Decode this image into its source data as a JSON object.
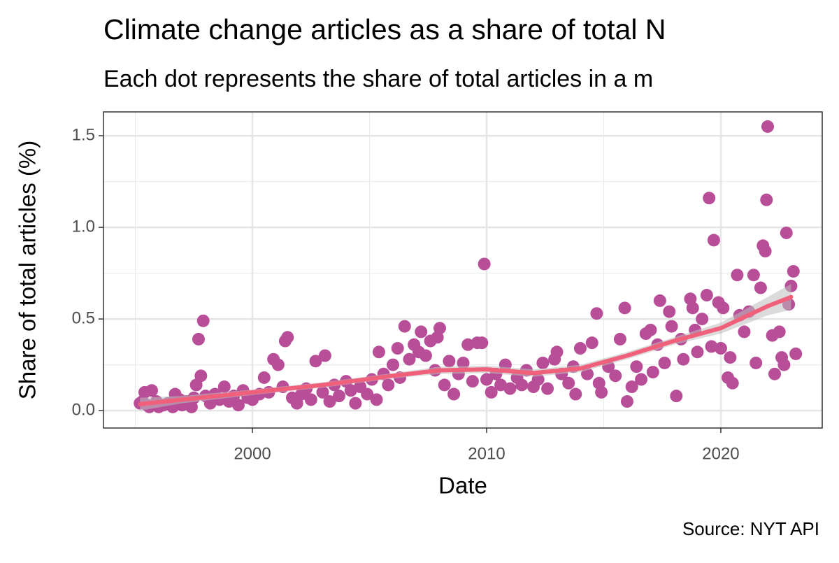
{
  "chart_data": {
    "type": "scatter",
    "title": "Climate change articles as a share of total N",
    "subtitle": "Each dot represents the share of total articles in a m",
    "x_label": "Date",
    "y_label": "Share of total articles (%)",
    "source": "Source: NYT API",
    "color": "#b84e98",
    "grid": true,
    "xlim": [
      1993.64,
      2024.33
    ],
    "ylim": [
      -0.095,
      1.63
    ],
    "xticks": [
      2000,
      2010,
      2020
    ],
    "xminorticks": [
      1995,
      2005,
      2015
    ],
    "yticks": [
      {
        "value": 0,
        "label": "0.0"
      },
      0.5,
      {
        "value": 1,
        "label": "1.0"
      },
      1.5
    ],
    "yminorticks": [
      0.25,
      0.75,
      1.25
    ],
    "x": [
      1995.2,
      1995.3,
      1995.4,
      1995.5,
      1995.6,
      1995.7,
      1995.9,
      1996.0,
      1996.2,
      1996.4,
      1996.6,
      1996.7,
      1996.9,
      1997.0,
      1997.2,
      1997.4,
      1997.5,
      1997.6,
      1997.7,
      1997.8,
      1997.9,
      1998.0,
      1998.2,
      1998.4,
      1998.6,
      1998.8,
      1999.0,
      1999.2,
      1999.4,
      1999.6,
      1999.8,
      2000.0,
      2000.3,
      2000.5,
      2000.7,
      2000.9,
      2001.1,
      2001.3,
      2001.4,
      2001.5,
      2001.7,
      2001.9,
      2002.1,
      2002.3,
      2002.5,
      2002.7,
      2003.0,
      2003.1,
      2003.3,
      2003.5,
      2003.7,
      2004.0,
      2004.2,
      2004.4,
      2004.6,
      2004.9,
      2005.1,
      2005.3,
      2005.4,
      2005.6,
      2005.8,
      2006.0,
      2006.2,
      2006.3,
      2006.5,
      2006.7,
      2006.9,
      2007.1,
      2007.2,
      2007.4,
      2007.6,
      2007.8,
      2007.9,
      2008.0,
      2008.2,
      2008.4,
      2008.6,
      2008.8,
      2009.0,
      2009.2,
      2009.4,
      2009.6,
      2009.8,
      2009.9,
      2010.0,
      2010.2,
      2010.4,
      2010.6,
      2010.8,
      2011.0,
      2011.3,
      2011.5,
      2011.7,
      2012.0,
      2012.2,
      2012.4,
      2012.6,
      2012.9,
      2013.0,
      2013.2,
      2013.5,
      2013.7,
      2013.8,
      2014.0,
      2014.3,
      2014.5,
      2014.7,
      2014.8,
      2014.9,
      2015.2,
      2015.5,
      2015.7,
      2015.9,
      2016.0,
      2016.2,
      2016.4,
      2016.6,
      2016.8,
      2017.0,
      2017.1,
      2017.3,
      2017.4,
      2017.6,
      2017.8,
      2017.9,
      2018.1,
      2018.3,
      2018.4,
      2018.7,
      2018.8,
      2018.9,
      2019.0,
      2019.2,
      2019.4,
      2019.5,
      2019.6,
      2019.7,
      2019.9,
      2020.0,
      2020.1,
      2020.3,
      2020.4,
      2020.5,
      2020.7,
      2020.8,
      2021.0,
      2021.2,
      2021.4,
      2021.5,
      2021.7,
      2021.8,
      2021.9,
      2021.95,
      2022.0,
      2022.2,
      2022.3,
      2022.5,
      2022.6,
      2022.7,
      2022.8,
      2022.9,
      2023.0,
      2023.1,
      2023.2
    ],
    "values": [
      0.04,
      0.05,
      0.1,
      0.03,
      0.02,
      0.11,
      0.05,
      0.02,
      0.03,
      0.04,
      0.02,
      0.09,
      0.06,
      0.03,
      0.05,
      0.02,
      0.07,
      0.14,
      0.39,
      0.19,
      0.49,
      0.08,
      0.04,
      0.09,
      0.06,
      0.13,
      0.05,
      0.08,
      0.03,
      0.11,
      0.07,
      0.06,
      0.09,
      0.18,
      0.1,
      0.28,
      0.25,
      0.13,
      0.38,
      0.4,
      0.07,
      0.04,
      0.09,
      0.12,
      0.06,
      0.27,
      0.1,
      0.3,
      0.05,
      0.14,
      0.08,
      0.16,
      0.11,
      0.04,
      0.13,
      0.09,
      0.17,
      0.06,
      0.32,
      0.2,
      0.14,
      0.25,
      0.34,
      0.18,
      0.46,
      0.28,
      0.36,
      0.32,
      0.43,
      0.3,
      0.38,
      0.22,
      0.4,
      0.45,
      0.14,
      0.27,
      0.09,
      0.2,
      0.26,
      0.36,
      0.16,
      0.37,
      0.37,
      0.8,
      0.17,
      0.1,
      0.2,
      0.14,
      0.25,
      0.12,
      0.18,
      0.14,
      0.22,
      0.13,
      0.17,
      0.26,
      0.12,
      0.28,
      0.32,
      0.2,
      0.15,
      0.24,
      0.09,
      0.34,
      0.2,
      0.37,
      0.53,
      0.15,
      0.1,
      0.24,
      0.19,
      0.39,
      0.56,
      0.05,
      0.13,
      0.24,
      0.17,
      0.42,
      0.44,
      0.21,
      0.36,
      0.6,
      0.26,
      0.54,
      0.46,
      0.08,
      0.39,
      0.28,
      0.61,
      0.56,
      0.44,
      0.32,
      0.5,
      0.63,
      1.16,
      0.35,
      0.93,
      0.59,
      0.34,
      0.56,
      0.18,
      0.29,
      0.15,
      0.74,
      0.52,
      0.43,
      0.54,
      0.74,
      0.26,
      0.67,
      0.9,
      0.87,
      1.15,
      1.55,
      0.41,
      0.2,
      0.43,
      0.29,
      0.25,
      0.97,
      0.58,
      0.68,
      0.76,
      0.31
    ],
    "trend": {
      "color": "#f0607a",
      "band_color": "#bdbdbd",
      "x": [
        1995.2,
        1997,
        2000,
        2003,
        2006,
        2008,
        2010,
        2012,
        2014,
        2016,
        2018,
        2020,
        2022,
        2023
      ],
      "values": [
        0.035,
        0.06,
        0.1,
        0.14,
        0.19,
        0.22,
        0.225,
        0.205,
        0.23,
        0.3,
        0.38,
        0.45,
        0.57,
        0.62
      ],
      "lower": [
        0.0,
        0.04,
        0.085,
        0.125,
        0.175,
        0.2,
        0.205,
        0.185,
        0.21,
        0.28,
        0.36,
        0.42,
        0.52,
        0.55
      ],
      "upper": [
        0.07,
        0.08,
        0.115,
        0.155,
        0.205,
        0.24,
        0.245,
        0.225,
        0.25,
        0.32,
        0.4,
        0.48,
        0.62,
        0.69
      ]
    }
  }
}
